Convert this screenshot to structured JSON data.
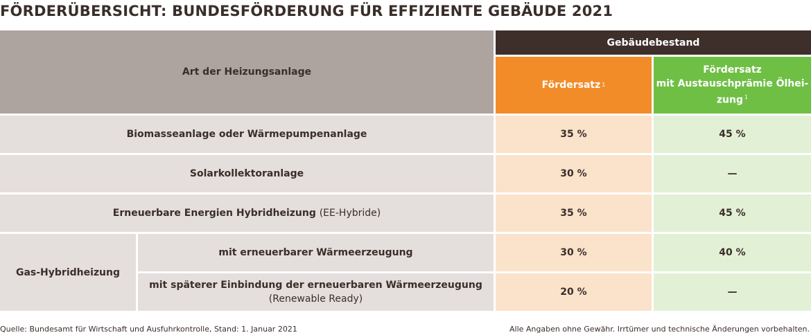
{
  "title": "FÖRDERÜBERSICHT: BUNDESFÖRDERUNG FÜR EFFIZIENTE GEBÄUDE 2021",
  "header": {
    "type_label": "Art der Heizungsanlage",
    "group_label": "Gebäudebestand",
    "rate_label": "Fördersatz",
    "rate_note": "1",
    "bonus_label_line1": "Fördersatz",
    "bonus_label_line2": "mit Austauschprämie Ölhei-",
    "bonus_label_line3": "zung",
    "bonus_note": "1"
  },
  "rows": [
    {
      "label": "Biomasseanlage oder Wärmepumpenanlage",
      "rate": "35 %",
      "bonus": "45 %"
    },
    {
      "label": "Solarkollektoranlage",
      "rate": "30 %",
      "bonus": "—"
    },
    {
      "label": "Erneuerbare Energien Hybridheizung",
      "label_extra": "(EE-Hybride)",
      "rate": "35 %",
      "bonus": "45 %"
    }
  ],
  "gas_group": {
    "label": "Gas-Hybridheizung",
    "subrows": [
      {
        "label": "mit erneuerbarer Wärmeerzeugung",
        "rate": "30 %",
        "bonus": "40 %"
      },
      {
        "label": "mit späterer Einbindung der erneuerbaren Wärmeerzeugung",
        "label_extra": "(Renewable Ready)",
        "rate": "20 %",
        "bonus": "—"
      }
    ]
  },
  "footer": {
    "source": "Quelle: Bundesamt für Wirtschaft und Ausfuhrkontrolle, Stand: 1. Januar 2021",
    "disclaimer": "Alle Angaben ohne Gewähr. Irrtümer und technische Änderungen vorbehalten."
  }
}
